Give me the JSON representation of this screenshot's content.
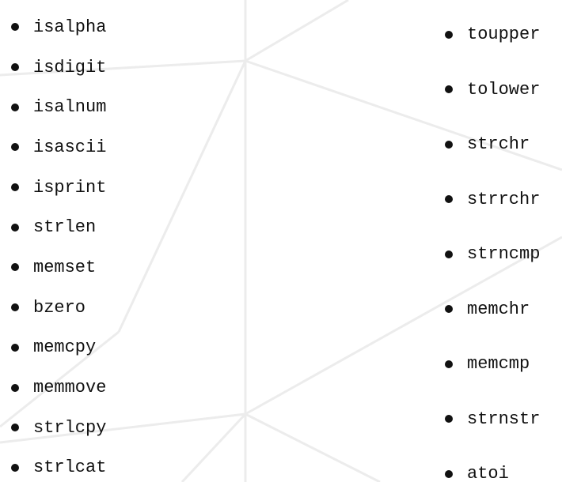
{
  "left_list": [
    "isalpha",
    "isdigit",
    "isalnum",
    "isascii",
    "isprint",
    "strlen",
    "memset",
    "bzero",
    "memcpy",
    "memmove",
    "strlcpy",
    "strlcat"
  ],
  "right_list": [
    "toupper",
    "tolower",
    "strchr",
    "strrchr",
    "strncmp",
    "memchr",
    "memcmp",
    "strnstr",
    "atoi"
  ],
  "colors": {
    "text": "#111111",
    "background": "#ffffff",
    "decor_lines": "#ececec"
  }
}
